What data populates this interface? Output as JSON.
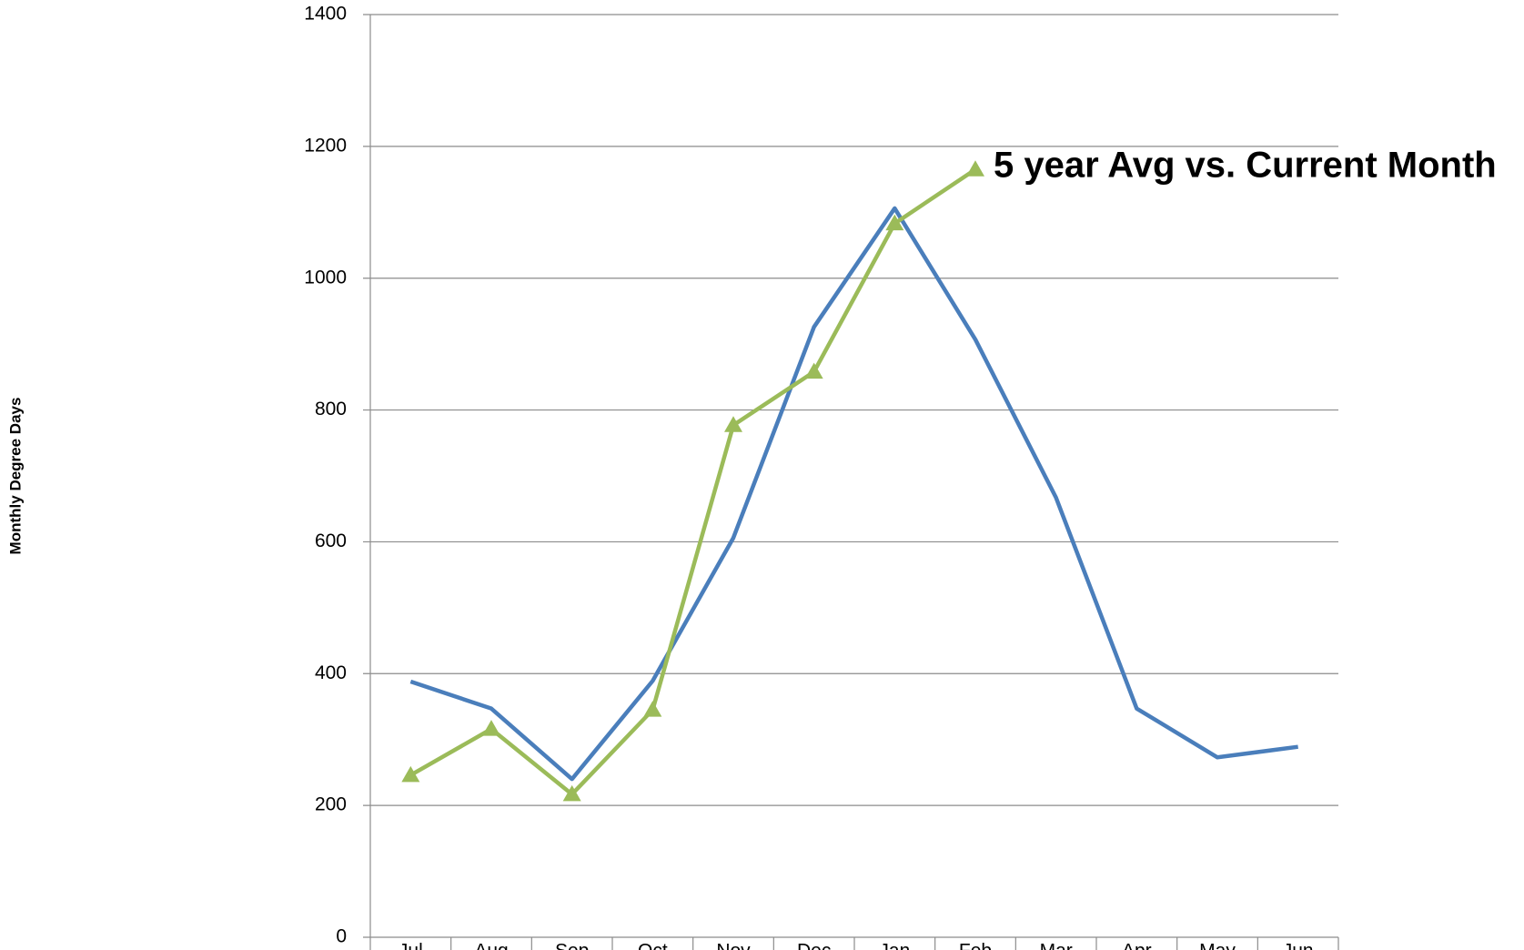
{
  "chart_data": {
    "type": "line",
    "annotation": "5 year Avg vs. Current Month",
    "y_label": "Monthly Degree Days",
    "categories": [
      "Jul",
      "Aug",
      "Sep",
      "Oct",
      "Nov",
      "Dec",
      "Jan",
      "Feb",
      "Mar",
      "Apr",
      "May",
      "Jun"
    ],
    "series": [
      {
        "color": "#4a7ebb",
        "marker": "none",
        "values": [
          388,
          347,
          240,
          389,
          606,
          926,
          1106,
          907,
          667,
          347,
          273,
          289
        ]
      },
      {
        "color": "#9bbb59",
        "marker": "triangle",
        "values": [
          246,
          316,
          217,
          345,
          777,
          858,
          1083,
          1165,
          null,
          null,
          null,
          null
        ]
      }
    ],
    "ylim": [
      0,
      1400
    ],
    "yticks": [
      0,
      200,
      400,
      600,
      800,
      1000,
      1200,
      1400
    ],
    "grid": true
  }
}
